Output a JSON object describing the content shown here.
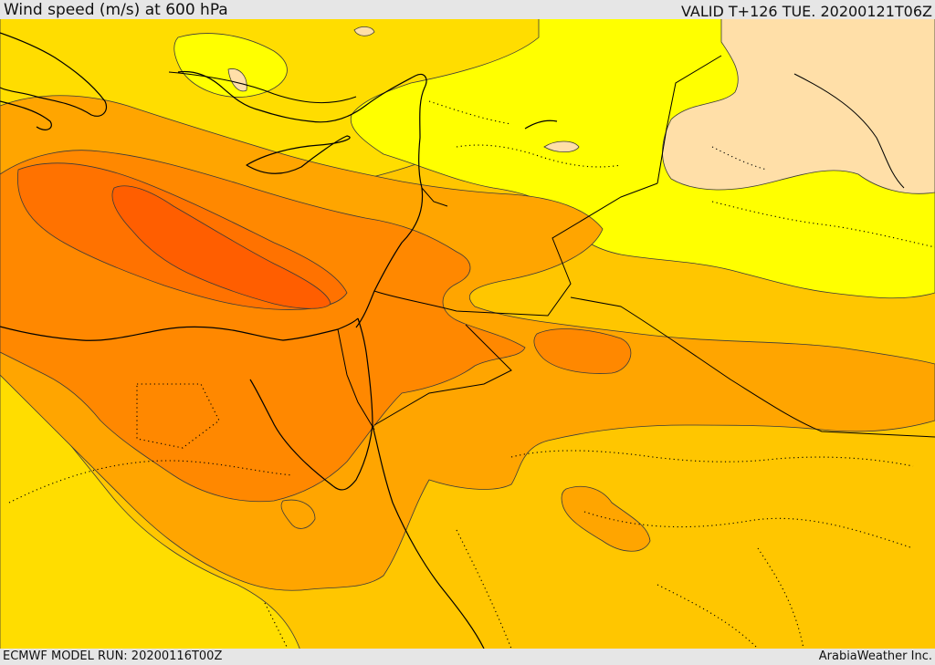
{
  "header": {
    "title": "Wind speed (m/s) at 600 hPa",
    "valid": "VALID T+126 TUE. 20200121T06Z"
  },
  "footer": {
    "model_run": "ECMWF MODEL RUN: 20200116T00Z",
    "credit": "ArabiaWeather Inc."
  },
  "colors": {
    "band_calm": "#ffdfa8",
    "band_yellow": "#ffff00",
    "band_gold": "#ffdd00",
    "band_amber": "#ffc600",
    "band_orange_light": "#ffa500",
    "band_orange": "#ff8800",
    "band_orange_dark": "#ff7200",
    "band_max": "#ff5e00"
  }
}
